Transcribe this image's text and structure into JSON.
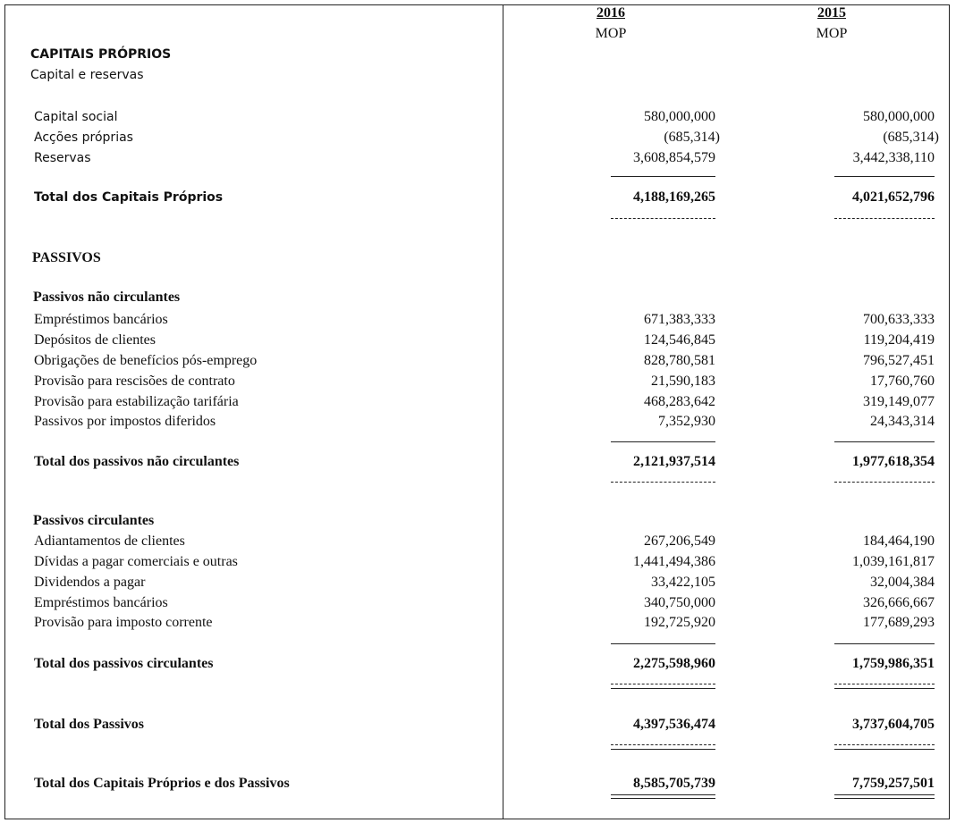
{
  "header": {
    "columns": [
      {
        "year": "2016",
        "unit": "MOP"
      },
      {
        "year": "2015",
        "unit": "MOP"
      }
    ]
  },
  "equity": {
    "title": "CAPITAIS PRÓPRIOS",
    "subtitle": "Capital e reservas",
    "items": [
      {
        "label": "Capital social",
        "values": [
          "580,000,000",
          "580,000,000"
        ]
      },
      {
        "label": "Acções próprias",
        "values": [
          "(685,314)",
          "(685,314)"
        ]
      },
      {
        "label": "Reservas",
        "values": [
          "3,608,854,579",
          "3,442,338,110"
        ]
      }
    ],
    "total": {
      "label": "Total dos Capitais Próprios",
      "values": [
        "4,188,169,265",
        "4,021,652,796"
      ]
    }
  },
  "liabilities": {
    "title": "PASSIVOS",
    "non_current": {
      "title": "Passivos não circulantes",
      "items": [
        {
          "label": "Empréstimos bancários",
          "values": [
            "671,383,333",
            "700,633,333"
          ]
        },
        {
          "label": "Depósitos de clientes",
          "values": [
            "124,546,845",
            "119,204,419"
          ]
        },
        {
          "label": "Obrigações de benefícios pós-emprego",
          "values": [
            "828,780,581",
            "796,527,451"
          ]
        },
        {
          "label": "Provisão para rescisões de contrato",
          "values": [
            "21,590,183",
            "17,760,760"
          ]
        },
        {
          "label": "Provisão para estabilização tarifária",
          "values": [
            "468,283,642",
            "319,149,077"
          ]
        },
        {
          "label": "Passivos por impostos diferidos",
          "values": [
            "7,352,930",
            "24,343,314"
          ]
        }
      ],
      "total": {
        "label": "Total dos passivos não circulantes",
        "values": [
          "2,121,937,514",
          "1,977,618,354"
        ]
      }
    },
    "current": {
      "title": "Passivos circulantes",
      "items": [
        {
          "label": "Adiantamentos de clientes",
          "values": [
            "267,206,549",
            "184,464,190"
          ]
        },
        {
          "label": "Dívidas a pagar comerciais e outras",
          "values": [
            "1,441,494,386",
            "1,039,161,817"
          ]
        },
        {
          "label": "Dividendos a pagar",
          "values": [
            "33,422,105",
            "32,004,384"
          ]
        },
        {
          "label": "Empréstimos bancários",
          "values": [
            "340,750,000",
            "326,666,667"
          ]
        },
        {
          "label": "Provisão para imposto corrente",
          "values": [
            "192,725,920",
            "177,689,293"
          ]
        }
      ],
      "total": {
        "label": "Total dos passivos circulantes",
        "values": [
          "2,275,598,960",
          "1,759,986,351"
        ]
      }
    },
    "total": {
      "label": "Total dos Passivos",
      "values": [
        "4,397,536,474",
        "3,737,604,705"
      ]
    }
  },
  "grand_total": {
    "label": "Total dos Capitais Próprios e dos Passivos",
    "values": [
      "8,585,705,739",
      "7,759,257,501"
    ]
  }
}
